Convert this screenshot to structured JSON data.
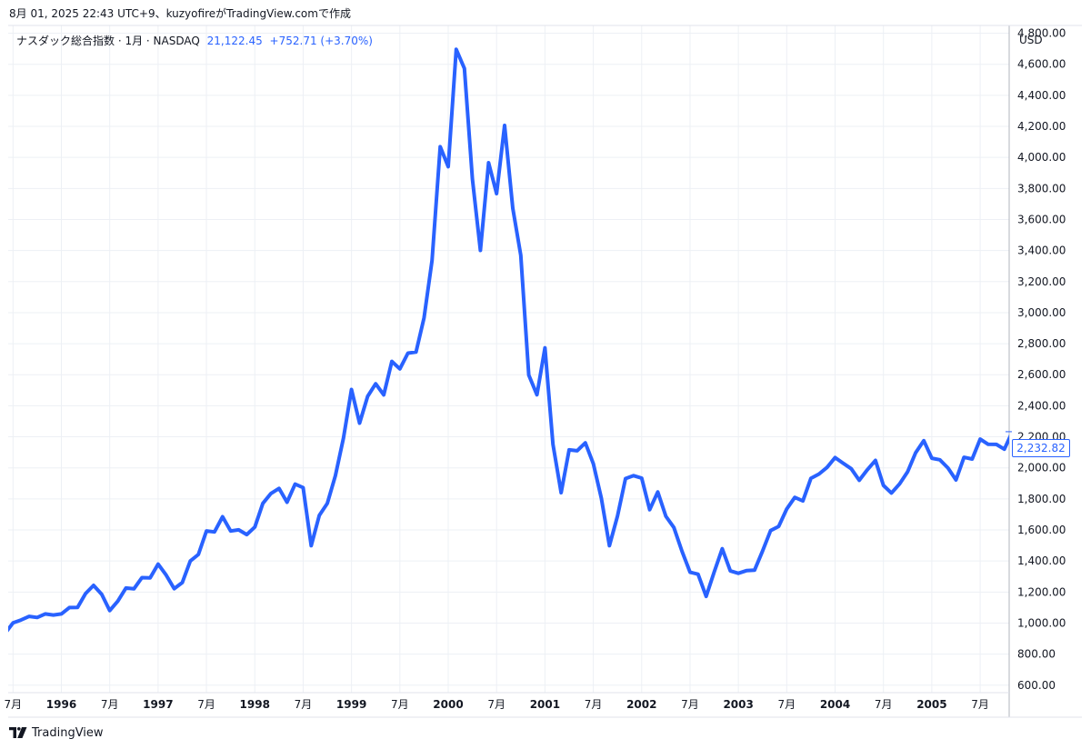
{
  "header": {
    "note": "8月 01, 2025 22:43 UTC+9、kuzyofireがTradingView.comで作成"
  },
  "legend": {
    "symbol": "ナスダック総合指数 · 1月 · NASDAQ",
    "value": "21,122.45",
    "change": "+752.71 (+3.70%)"
  },
  "price_axis": {
    "currency": "USD",
    "last_value_label": "2,232.82"
  },
  "brand": {
    "name": "TradingView"
  },
  "colors": {
    "line": "#2962ff",
    "grid": "#edf0f5",
    "axis_text": "#131722",
    "accent": "#2962ff"
  },
  "chart_data": {
    "type": "line",
    "title": "ナスダック総合指数 · 1月 · NASDAQ",
    "xlabel": "",
    "ylabel": "USD",
    "ylim": [
      552,
      4850
    ],
    "xlim": [
      1995.45,
      2005.8
    ],
    "grid": true,
    "legend": "top-left",
    "y_ticks": [
      600,
      800,
      1000,
      1200,
      1400,
      1600,
      1800,
      2000,
      2200,
      2400,
      2600,
      2800,
      3000,
      3200,
      3400,
      3600,
      3800,
      4000,
      4200,
      4400,
      4600,
      4800
    ],
    "y_tick_labels": [
      "600.00",
      "800.00",
      "1,000.00",
      "1,200.00",
      "1,400.00",
      "1,600.00",
      "1,800.00",
      "2,000.00",
      "2,200.00",
      "2,400.00",
      "2,600.00",
      "2,800.00",
      "3,000.00",
      "3,200.00",
      "3,400.00",
      "3,600.00",
      "3,800.00",
      "4,000.00",
      "4,200.00",
      "4,400.00",
      "4,600.00",
      "4,800.00"
    ],
    "x_ticks": [
      {
        "t": 1995.5,
        "label": "7月",
        "bold": false
      },
      {
        "t": 1996.0,
        "label": "1996",
        "bold": true
      },
      {
        "t": 1996.5,
        "label": "7月",
        "bold": false
      },
      {
        "t": 1997.0,
        "label": "1997",
        "bold": true
      },
      {
        "t": 1997.5,
        "label": "7月",
        "bold": false
      },
      {
        "t": 1998.0,
        "label": "1998",
        "bold": true
      },
      {
        "t": 1998.5,
        "label": "7月",
        "bold": false
      },
      {
        "t": 1999.0,
        "label": "1999",
        "bold": true
      },
      {
        "t": 1999.5,
        "label": "7月",
        "bold": false
      },
      {
        "t": 2000.0,
        "label": "2000",
        "bold": true
      },
      {
        "t": 2000.5,
        "label": "7月",
        "bold": false
      },
      {
        "t": 2001.0,
        "label": "2001",
        "bold": true
      },
      {
        "t": 2001.5,
        "label": "7月",
        "bold": false
      },
      {
        "t": 2002.0,
        "label": "2002",
        "bold": true
      },
      {
        "t": 2002.5,
        "label": "7月",
        "bold": false
      },
      {
        "t": 2003.0,
        "label": "2003",
        "bold": true
      },
      {
        "t": 2003.5,
        "label": "7月",
        "bold": false
      },
      {
        "t": 2004.0,
        "label": "2004",
        "bold": true
      },
      {
        "t": 2004.5,
        "label": "7月",
        "bold": false
      },
      {
        "t": 2005.0,
        "label": "2005",
        "bold": true
      },
      {
        "t": 2005.5,
        "label": "7月",
        "bold": false
      }
    ],
    "series": [
      {
        "name": "ナスダック総合指数",
        "x": [
          1995.417,
          1995.5,
          1995.583,
          1995.667,
          1995.75,
          1995.833,
          1995.917,
          1996.0,
          1996.083,
          1996.167,
          1996.25,
          1996.333,
          1996.417,
          1996.5,
          1996.583,
          1996.667,
          1996.75,
          1996.833,
          1996.917,
          1997.0,
          1997.083,
          1997.167,
          1997.25,
          1997.333,
          1997.417,
          1997.5,
          1997.583,
          1997.667,
          1997.75,
          1997.833,
          1997.917,
          1998.0,
          1998.083,
          1998.167,
          1998.25,
          1998.333,
          1998.417,
          1998.5,
          1998.583,
          1998.667,
          1998.75,
          1998.833,
          1998.917,
          1999.0,
          1999.083,
          1999.167,
          1999.25,
          1999.333,
          1999.417,
          1999.5,
          1999.583,
          1999.667,
          1999.75,
          1999.833,
          1999.917,
          2000.0,
          2000.083,
          2000.167,
          2000.25,
          2000.333,
          2000.417,
          2000.5,
          2000.583,
          2000.667,
          2000.75,
          2000.833,
          2000.917,
          2001.0,
          2001.083,
          2001.167,
          2001.25,
          2001.333,
          2001.417,
          2001.5,
          2001.583,
          2001.667,
          2001.75,
          2001.833,
          2001.917,
          2002.0,
          2002.083,
          2002.167,
          2002.25,
          2002.333,
          2002.417,
          2002.5,
          2002.583,
          2002.667,
          2002.75,
          2002.833,
          2002.917,
          2003.0,
          2003.083,
          2003.167,
          2003.25,
          2003.333,
          2003.417,
          2003.5,
          2003.583,
          2003.667,
          2003.75,
          2003.833,
          2003.917,
          2004.0,
          2004.083,
          2004.167,
          2004.25,
          2004.333,
          2004.417,
          2004.5,
          2004.583,
          2004.667,
          2004.75,
          2004.833,
          2004.917,
          2005.0,
          2005.083,
          2005.167,
          2005.25,
          2005.333,
          2005.417,
          2005.5,
          2005.583,
          2005.667,
          2005.75,
          2005.833
        ],
        "values": [
          933,
          1001,
          1020,
          1043,
          1036,
          1059,
          1052,
          1059,
          1100,
          1101,
          1190,
          1243,
          1185,
          1081,
          1141,
          1226,
          1221,
          1293,
          1291,
          1380,
          1310,
          1222,
          1261,
          1400,
          1442,
          1594,
          1587,
          1685,
          1593,
          1601,
          1570,
          1619,
          1771,
          1835,
          1868,
          1779,
          1895,
          1873,
          1499,
          1694,
          1771,
          1950,
          2193,
          2505,
          2288,
          2461,
          2542,
          2470,
          2686,
          2638,
          2739,
          2746,
          2966,
          3336,
          4069,
          3940,
          4696,
          4573,
          3861,
          3401,
          3966,
          3767,
          4206,
          3673,
          3370,
          2598,
          2471,
          2773,
          2152,
          1840,
          2116,
          2110,
          2161,
          2027,
          1805,
          1499,
          1690,
          1931,
          1950,
          1934,
          1731,
          1845,
          1688,
          1616,
          1463,
          1328,
          1315,
          1172,
          1330,
          1479,
          1336,
          1321,
          1338,
          1341,
          1464,
          1596,
          1623,
          1735,
          1810,
          1787,
          1932,
          1960,
          2003,
          2066,
          2030,
          1994,
          1920,
          1987,
          2048,
          1887,
          1838,
          1897,
          1975,
          2097,
          2175,
          2062,
          2052,
          1999,
          1922,
          2068,
          2057,
          2185,
          2152,
          2151,
          2120,
          2233
        ]
      }
    ]
  }
}
